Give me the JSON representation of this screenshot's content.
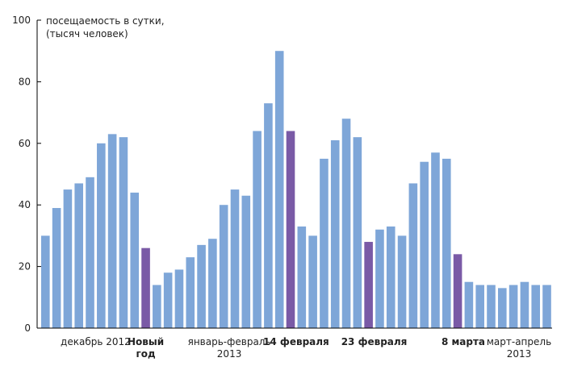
{
  "chart_data": {
    "type": "bar",
    "title": "",
    "ylabel": [
      "посещаемость в сутки,",
      "(тысяч человек)"
    ],
    "xlabel": "",
    "ylim": [
      0,
      100
    ],
    "yticks": [
      0,
      20,
      40,
      60,
      80,
      100
    ],
    "grid": false,
    "colors": {
      "normal": "#7ea6d8",
      "holiday": "#7a5aa6",
      "axis": "#000000"
    },
    "values": [
      30,
      39,
      45,
      47,
      49,
      60,
      63,
      62,
      44,
      26,
      14,
      18,
      19,
      23,
      27,
      29,
      40,
      45,
      43,
      64,
      73,
      90,
      64,
      33,
      30,
      55,
      61,
      68,
      62,
      28,
      32,
      33,
      30,
      47,
      54,
      57,
      55,
      24,
      15,
      14,
      14,
      13,
      14,
      15,
      14,
      14
    ],
    "highlight_indices": [
      9,
      22,
      29,
      37
    ],
    "category_labels": [
      {
        "lines": [
          "декабрь  2012"
        ],
        "bold": false,
        "at": 4.5
      },
      {
        "lines": [
          "Новый",
          "год"
        ],
        "bold": true,
        "at": 9
      },
      {
        "lines": [
          "январь-февраль",
          "2013"
        ],
        "bold": false,
        "at": 16.5
      },
      {
        "lines": [
          "14 февраля"
        ],
        "bold": true,
        "at": 22.5
      },
      {
        "lines": [
          "23 февраля"
        ],
        "bold": true,
        "at": 29.5
      },
      {
        "lines": [
          "8 марта"
        ],
        "bold": true,
        "at": 37.5
      },
      {
        "lines": [
          "март-апрель",
          "2013"
        ],
        "bold": false,
        "at": 42.5
      }
    ]
  }
}
